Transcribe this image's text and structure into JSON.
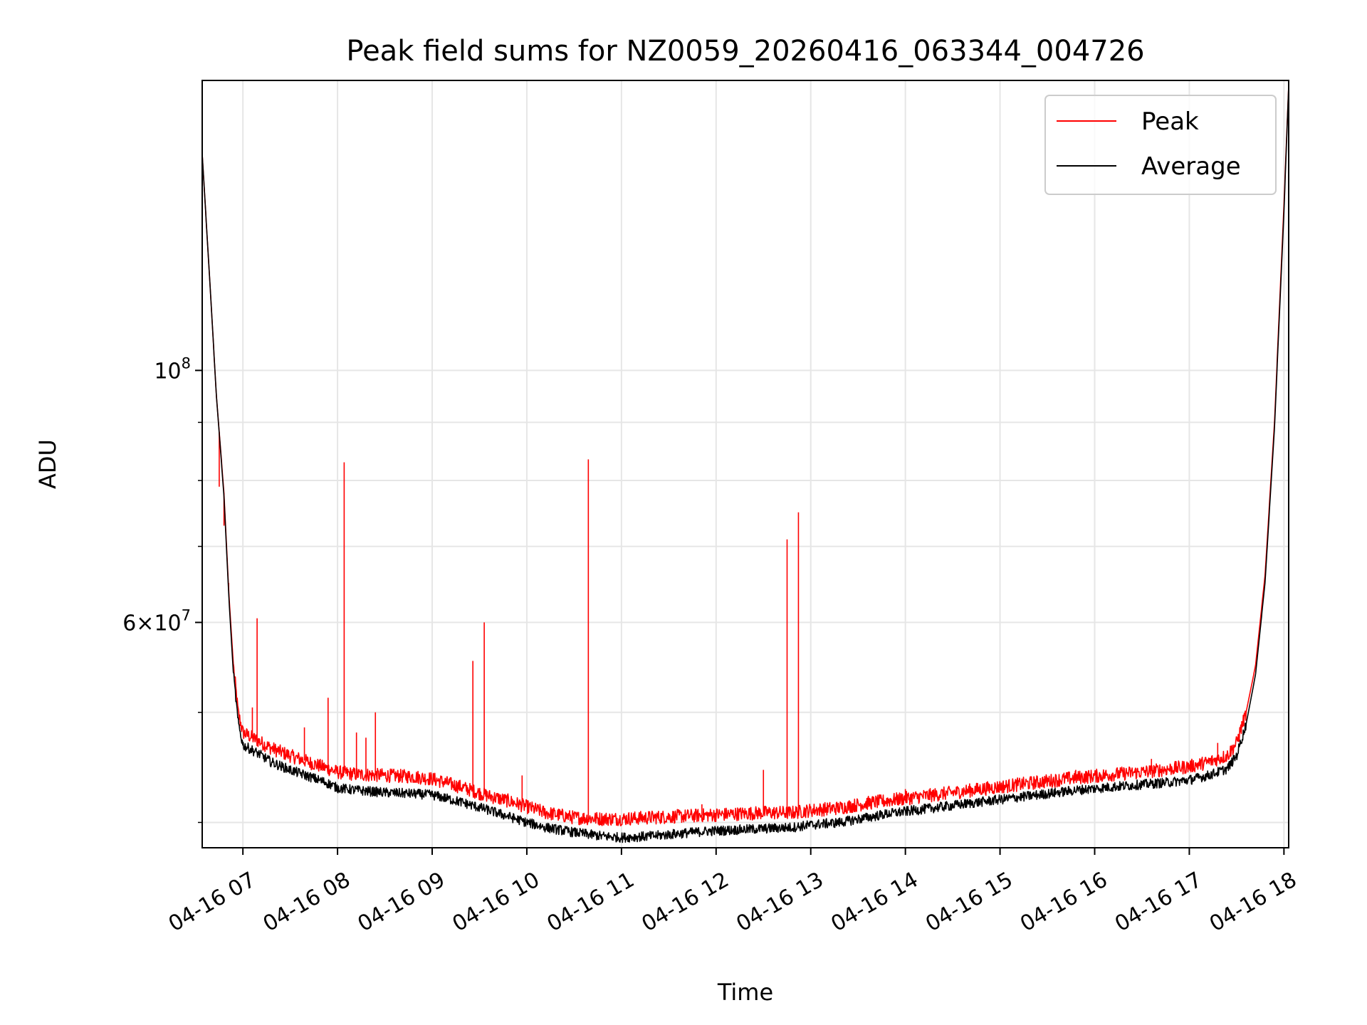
{
  "chart_data": {
    "type": "line",
    "title": "Peak field sums for NZ0059_20260416_063344_004726",
    "xlabel": "Time",
    "ylabel": "ADU",
    "yscale": "log",
    "ylim": [
      38000000,
      180000000
    ],
    "xlim_hours": [
      6.57,
      18.05
    ],
    "grid": true,
    "legend": {
      "placement": "top-right",
      "entries": [
        "Peak",
        "Average"
      ]
    },
    "x_ticks": [
      {
        "hour": 7,
        "label": "04-16 07"
      },
      {
        "hour": 8,
        "label": "04-16 08"
      },
      {
        "hour": 9,
        "label": "04-16 09"
      },
      {
        "hour": 10,
        "label": "04-16 10"
      },
      {
        "hour": 11,
        "label": "04-16 11"
      },
      {
        "hour": 12,
        "label": "04-16 12"
      },
      {
        "hour": 13,
        "label": "04-16 13"
      },
      {
        "hour": 14,
        "label": "04-16 14"
      },
      {
        "hour": 15,
        "label": "04-16 15"
      },
      {
        "hour": 16,
        "label": "04-16 16"
      },
      {
        "hour": 17,
        "label": "04-16 17"
      },
      {
        "hour": 18,
        "label": "04-16 18"
      }
    ],
    "y_major_ticks": [
      {
        "value": 100000000,
        "base": "10",
        "exp": "8"
      },
      {
        "value": 60000000,
        "base": "6×10",
        "exp": "7"
      }
    ],
    "y_minor_ticks": [
      40000000,
      50000000,
      70000000,
      80000000,
      90000000
    ],
    "series": [
      {
        "name": "Peak",
        "color": "#ff0000",
        "x": [
          6.57,
          6.65,
          6.72,
          6.8,
          6.85,
          6.9,
          6.95,
          7.0,
          7.1,
          7.2,
          7.3,
          7.5,
          7.7,
          7.9,
          8.0,
          8.2,
          8.5,
          8.8,
          9.0,
          9.3,
          9.6,
          9.8,
          10.0,
          10.2,
          10.5,
          10.8,
          11.0,
          11.3,
          11.6,
          11.9,
          12.2,
          12.5,
          12.8,
          13.0,
          13.3,
          13.6,
          13.8,
          14.0,
          14.3,
          14.7,
          15.0,
          15.4,
          15.8,
          16.2,
          16.5,
          16.8,
          17.0,
          17.2,
          17.4,
          17.5,
          17.6,
          17.7,
          17.8,
          17.9,
          18.0,
          18.05
        ],
        "y": [
          155000000,
          120000000,
          95000000,
          78000000,
          64000000,
          55000000,
          50000000,
          48000000,
          47500000,
          47000000,
          46500000,
          45800000,
          45200000,
          44600000,
          44300000,
          44100000,
          44000000,
          43900000,
          43700000,
          43000000,
          42200000,
          41800000,
          41300000,
          40800000,
          40400000,
          40300000,
          40300000,
          40400000,
          40500000,
          40600000,
          40700000,
          40800000,
          40800000,
          41000000,
          41200000,
          41600000,
          41800000,
          42000000,
          42300000,
          42700000,
          43000000,
          43400000,
          43800000,
          44100000,
          44300000,
          44600000,
          44800000,
          45200000,
          45800000,
          47000000,
          50000000,
          55000000,
          66000000,
          90000000,
          140000000,
          178000000
        ],
        "spikes": [
          {
            "x": 6.75,
            "y": 79000000
          },
          {
            "x": 6.8,
            "y": 73000000
          },
          {
            "x": 6.85,
            "y": 65000000
          },
          {
            "x": 7.1,
            "y": 50500000
          },
          {
            "x": 7.15,
            "y": 60500000
          },
          {
            "x": 7.65,
            "y": 48500000
          },
          {
            "x": 7.9,
            "y": 51500000
          },
          {
            "x": 8.07,
            "y": 83000000
          },
          {
            "x": 8.2,
            "y": 48000000
          },
          {
            "x": 8.3,
            "y": 47500000
          },
          {
            "x": 8.4,
            "y": 50000000
          },
          {
            "x": 9.43,
            "y": 55500000
          },
          {
            "x": 9.55,
            "y": 60000000
          },
          {
            "x": 9.95,
            "y": 44000000
          },
          {
            "x": 10.65,
            "y": 83500000
          },
          {
            "x": 11.85,
            "y": 41500000
          },
          {
            "x": 12.5,
            "y": 44500000
          },
          {
            "x": 12.75,
            "y": 71000000
          },
          {
            "x": 12.87,
            "y": 75000000
          },
          {
            "x": 14.0,
            "y": 42800000
          },
          {
            "x": 15.8,
            "y": 44500000
          },
          {
            "x": 16.6,
            "y": 45500000
          },
          {
            "x": 17.0,
            "y": 45000000
          },
          {
            "x": 17.3,
            "y": 47000000
          }
        ]
      },
      {
        "name": "Average",
        "color": "#000000",
        "x": [
          6.57,
          6.65,
          6.72,
          6.8,
          6.85,
          6.9,
          6.95,
          7.0,
          7.1,
          7.2,
          7.3,
          7.5,
          7.7,
          7.9,
          8.0,
          8.2,
          8.5,
          8.8,
          9.0,
          9.3,
          9.6,
          9.8,
          10.0,
          10.2,
          10.5,
          10.8,
          11.0,
          11.3,
          11.6,
          11.9,
          12.2,
          12.5,
          12.8,
          13.0,
          13.3,
          13.6,
          13.8,
          14.0,
          14.3,
          14.7,
          15.0,
          15.4,
          15.8,
          16.2,
          16.5,
          16.8,
          17.0,
          17.2,
          17.4,
          17.5,
          17.6,
          17.7,
          17.8,
          17.9,
          18.0,
          18.05
        ],
        "y": [
          155000000,
          120000000,
          95000000,
          77500000,
          63500000,
          54000000,
          49000000,
          46800000,
          46300000,
          45800000,
          45200000,
          44500000,
          43900000,
          43300000,
          42900000,
          42700000,
          42500000,
          42400000,
          42300000,
          41700000,
          41000000,
          40500000,
          40000000,
          39600000,
          39200000,
          38900000,
          38800000,
          38900000,
          39100000,
          39300000,
          39400000,
          39500000,
          39600000,
          39800000,
          40000000,
          40400000,
          40700000,
          40900000,
          41200000,
          41600000,
          41900000,
          42300000,
          42700000,
          43000000,
          43200000,
          43400000,
          43600000,
          44000000,
          44600000,
          45800000,
          48800000,
          54000000,
          65000000,
          89000000,
          138000000,
          178000000
        ]
      }
    ]
  }
}
